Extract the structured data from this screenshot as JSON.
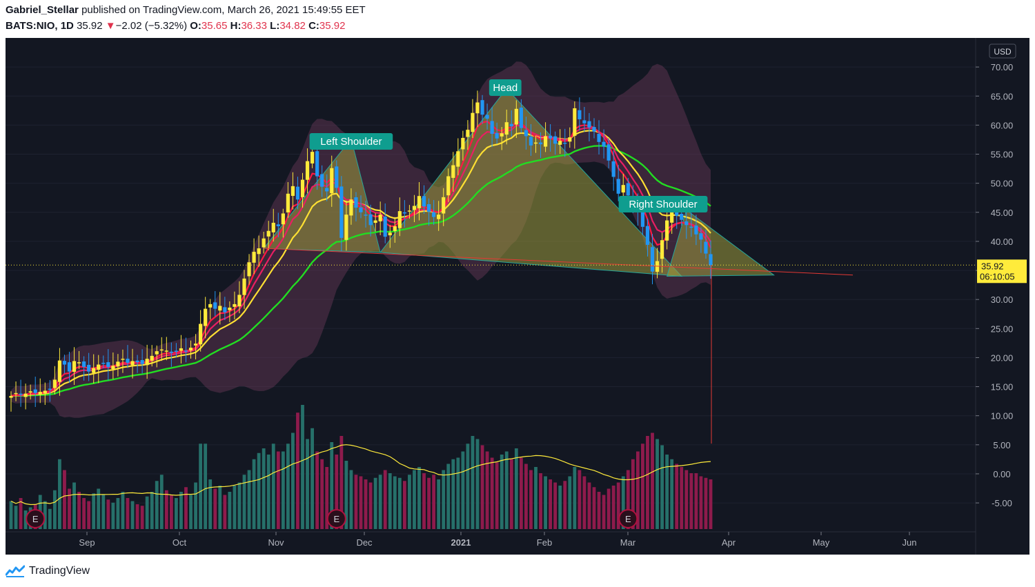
{
  "header": {
    "author": "Gabriel_Stellar",
    "published_text": "published on TradingView.com, March 26, 2021 15:49:55 EET",
    "symbol": "BATS:NIO, 1D",
    "last": "35.92",
    "change_arrow": "▼",
    "change": "−2.02 (−5.32%)",
    "open_label": "O:",
    "open": "35.65",
    "high_label": "H:",
    "high": "36.33",
    "low_label": "L:",
    "low": "34.82",
    "close_label": "C:",
    "close": "35.92"
  },
  "footer": {
    "brand": "TradingView",
    "icon": "tradingview-logo-icon"
  },
  "colors": {
    "background": "#131722",
    "up": "#ffeb3b",
    "down": "#2196f3",
    "ema_fast": "#e91e63",
    "ema_mid": "#ff1744",
    "ema_slow": "#ffe033",
    "ma_long": "#22dd22",
    "bands": "#6b3a58",
    "pattern": "#9d9a3c",
    "pattern_edge": "#26a69a",
    "vol_up": "#26706a",
    "vol_down": "#8e1b4c",
    "vol_ma": "#ffeb3b",
    "neckline": "#e53935"
  },
  "chart_data": {
    "type": "candlestick",
    "currency_badge": "USD",
    "y_ticks": [
      "70.00",
      "65.00",
      "60.00",
      "55.00",
      "50.00",
      "45.00",
      "40.00",
      "35.00",
      "30.00",
      "25.00",
      "20.00",
      "15.00",
      "10.00",
      "5.00",
      "0.00",
      "-5.00"
    ],
    "x_ticks": [
      "Sep",
      "Oct",
      "Nov",
      "Dec",
      "2021",
      "Feb",
      "Mar",
      "Apr",
      "May",
      "Jun"
    ],
    "price_label": "35.92",
    "countdown_label": "06:10:05",
    "annotations": [
      "Left Shoulder",
      "Head",
      "Right Shoulder"
    ],
    "earnings_marker": "E",
    "close_series": [
      13.4,
      13.9,
      13.6,
      13.8,
      14.2,
      13.9,
      14.1,
      14.3,
      14.6,
      16.2,
      19.5,
      18.8,
      17.6,
      19.4,
      19.2,
      18.4,
      17.6,
      18.2,
      18.8,
      19.0,
      18.4,
      18.6,
      19.3,
      19.8,
      19.1,
      19.4,
      19.2,
      18.9,
      19.8,
      20.3,
      21.1,
      21.4,
      21.2,
      20.8,
      21.1,
      21.6,
      21.2,
      21.7,
      22.4,
      25.8,
      28.4,
      29.2,
      28.4,
      28.9,
      27.8,
      28.6,
      29.2,
      30.8,
      33.6,
      36.4,
      38.2,
      38.8,
      40.5,
      41.8,
      43.2,
      42.6,
      44.8,
      48.2,
      49.5,
      47.2,
      50.6,
      53.8,
      55.4,
      51.2,
      49.4,
      48.6,
      52.6,
      49.2,
      40.6,
      44.6,
      47.2,
      45.8,
      45.0,
      44.6,
      42.8,
      43.6,
      44.6,
      40.8,
      41.5,
      42.6,
      45.2,
      44.8,
      45.3,
      46.1,
      47.8,
      46.0,
      45.1,
      44.2,
      44.6,
      47.6,
      51.2,
      53.1,
      55.5,
      57.8,
      59.2,
      62.1,
      63.9,
      61.8,
      61.1,
      58.5,
      57.7,
      58.6,
      60.5,
      59.8,
      62.8,
      59.5,
      58.1,
      56.5,
      57.0,
      56.7,
      58.1,
      57.7,
      56.8,
      57.3,
      56.9,
      57.9,
      62.9,
      61.0,
      60.3,
      59.6,
      58.9,
      57.1,
      56.3,
      53.9,
      51.1,
      48.2,
      49.7,
      47.9,
      46.1,
      45.1,
      42.5,
      39.4,
      34.8,
      36.6,
      40.2,
      43.6,
      45.1,
      44.4,
      43.7,
      42.8,
      42.4,
      41.2,
      40.3,
      37.9,
      35.92
    ],
    "volume_series": [
      18,
      15,
      20,
      12,
      14,
      16,
      22,
      18,
      13,
      25,
      45,
      38,
      26,
      30,
      24,
      20,
      18,
      23,
      26,
      22,
      19,
      17,
      20,
      24,
      20,
      18,
      16,
      15,
      21,
      24,
      31,
      35,
      25,
      22,
      20,
      24,
      27,
      22,
      30,
      55,
      55,
      32,
      26,
      28,
      22,
      24,
      28,
      30,
      35,
      38,
      45,
      49,
      52,
      48,
      55,
      50,
      50,
      55,
      62,
      75,
      80,
      58,
      65,
      50,
      45,
      40,
      56,
      48,
      60,
      44,
      38,
      35,
      34,
      32,
      30,
      33,
      35,
      38,
      36,
      34,
      33,
      31,
      35,
      38,
      40,
      36,
      33,
      35,
      32,
      38,
      42,
      45,
      46,
      50,
      55,
      60,
      58,
      54,
      50,
      46,
      43,
      48,
      50,
      45,
      52,
      46,
      42,
      38,
      40,
      36,
      34,
      32,
      30,
      28,
      31,
      34,
      40,
      38,
      34,
      30,
      27,
      24,
      22,
      26,
      28,
      30,
      34,
      38,
      45,
      50,
      55,
      60,
      62,
      58,
      54,
      48,
      45,
      42,
      40,
      38,
      36,
      36,
      34,
      33,
      32
    ],
    "y_axis_range": [
      -9.5,
      75
    ],
    "neckline": {
      "from": [
        "2020-10-27",
        38.8
      ],
      "to": [
        "2021-04-10",
        34.2
      ]
    },
    "pattern_points": {
      "left_shoulder": 57.6,
      "head": 66.3,
      "right_shoulder": 45.4,
      "low1": 38.1,
      "low2": 34.0
    }
  }
}
